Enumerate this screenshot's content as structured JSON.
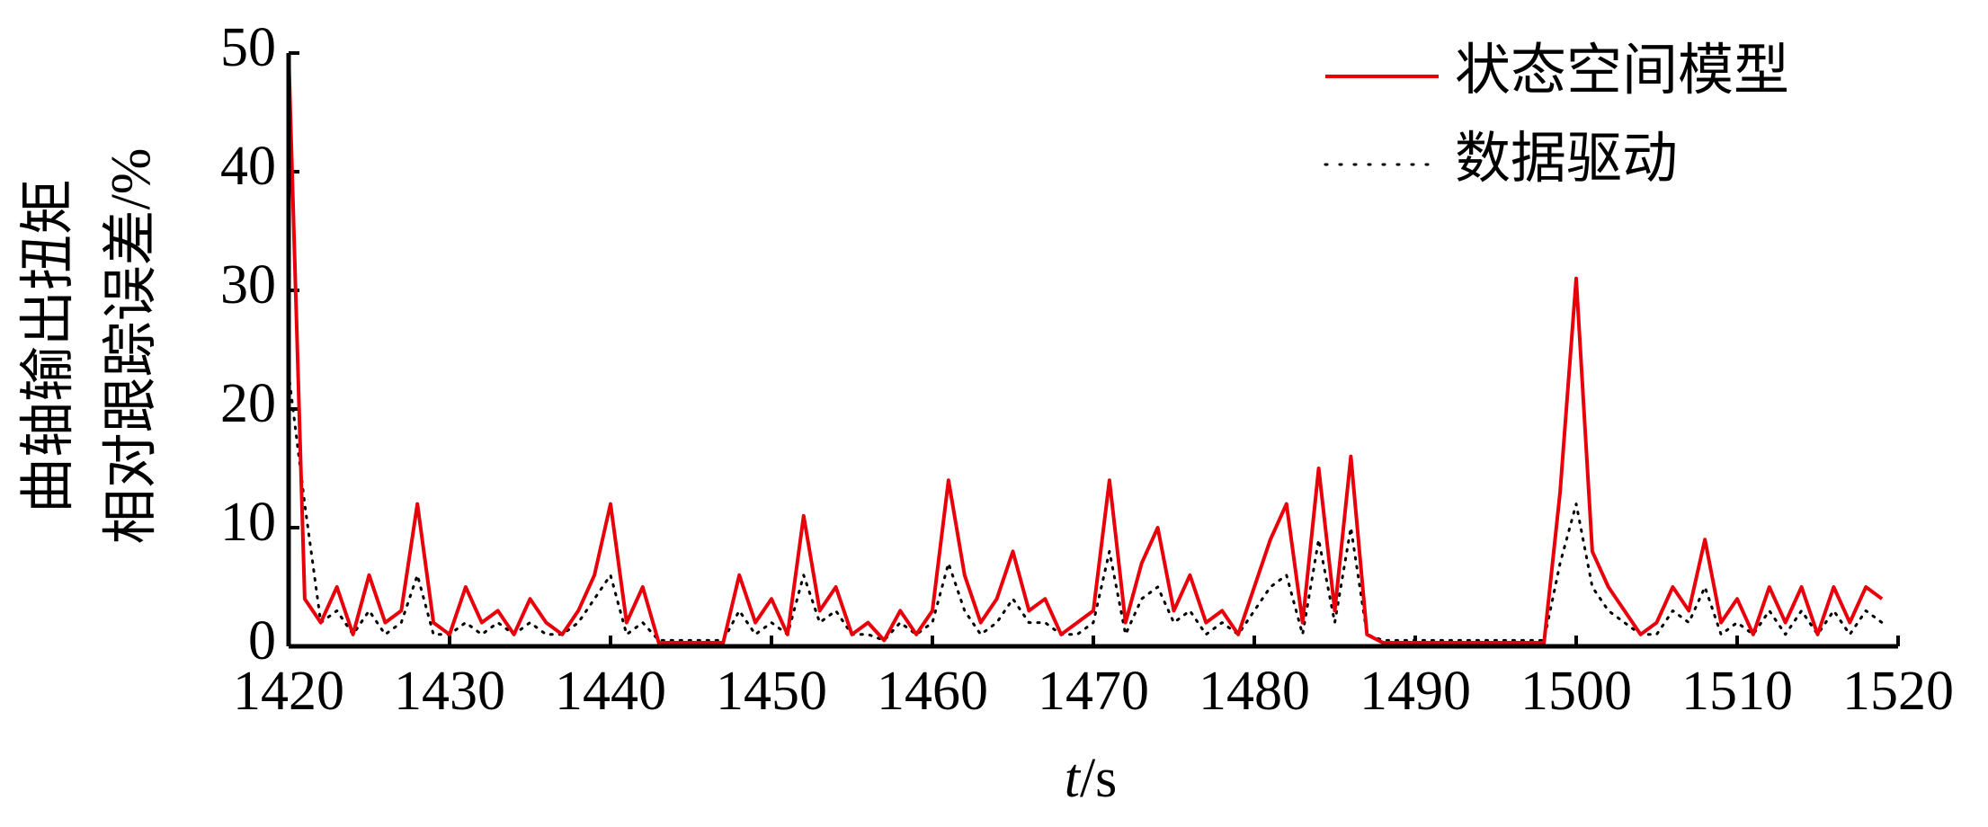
{
  "chart_data": {
    "type": "line",
    "ylabel": [
      "曲轴输出扭矩",
      "相对跟踪误差/%"
    ],
    "xlabel": "t/s",
    "x": [
      1420,
      1421,
      1422,
      1423,
      1424,
      1425,
      1426,
      1427,
      1428,
      1429,
      1430,
      1431,
      1432,
      1433,
      1434,
      1435,
      1436,
      1437,
      1438,
      1439,
      1440,
      1441,
      1442,
      1443,
      1444,
      1445,
      1446,
      1447,
      1448,
      1449,
      1450,
      1451,
      1452,
      1453,
      1454,
      1455,
      1456,
      1457,
      1458,
      1459,
      1460,
      1461,
      1462,
      1463,
      1464,
      1465,
      1466,
      1467,
      1468,
      1469,
      1470,
      1471,
      1472,
      1473,
      1474,
      1475,
      1476,
      1477,
      1478,
      1479,
      1480,
      1481,
      1482,
      1483,
      1484,
      1485,
      1486,
      1487,
      1488,
      1489,
      1490,
      1491,
      1492,
      1493,
      1494,
      1495,
      1496,
      1497,
      1498,
      1499,
      1500,
      1501,
      1502,
      1503,
      1504,
      1505,
      1506,
      1507,
      1508,
      1509,
      1510,
      1511,
      1512,
      1513,
      1514,
      1515,
      1516,
      1517,
      1518,
      1519
    ],
    "series": [
      {
        "name": "状态空间模型",
        "color": "#e8000b",
        "style": "solid",
        "values": [
          50,
          4,
          2,
          5,
          1,
          6,
          2,
          3,
          12,
          2,
          1,
          5,
          2,
          3,
          1,
          4,
          2,
          1,
          3,
          6,
          12,
          2,
          5,
          0.3,
          0.3,
          0.3,
          0.3,
          0.3,
          6,
          2,
          4,
          1,
          11,
          3,
          5,
          1,
          2,
          0.5,
          3,
          1,
          3,
          14,
          6,
          2,
          4,
          8,
          3,
          4,
          1,
          2,
          3,
          14,
          2,
          7,
          10,
          3,
          6,
          2,
          3,
          1,
          5,
          9,
          12,
          2,
          15,
          3,
          16,
          1,
          0.3,
          0.3,
          0.3,
          0.3,
          0.3,
          0.3,
          0.3,
          0.3,
          0.3,
          0.3,
          0.3,
          13,
          31,
          8,
          5,
          3,
          1,
          2,
          5,
          3,
          9,
          2,
          4,
          1,
          5,
          2,
          5,
          1,
          5,
          2,
          5,
          4
        ]
      },
      {
        "name": "数据驱动",
        "color": "#000000",
        "style": "dotted",
        "values": [
          23,
          12,
          2,
          3,
          1,
          3,
          1,
          2,
          6,
          1,
          1,
          2,
          1,
          2,
          1,
          2,
          1,
          1,
          2,
          4,
          6,
          1,
          2,
          0.5,
          0.5,
          0.5,
          0.5,
          0.5,
          3,
          1,
          2,
          1,
          6,
          2,
          3,
          1,
          1,
          0.5,
          2,
          1,
          2,
          7,
          3,
          1,
          2,
          4,
          2,
          2,
          1,
          1,
          2,
          8,
          1,
          4,
          5,
          2,
          3,
          1,
          2,
          1,
          3,
          5,
          6,
          1,
          9,
          2,
          10,
          1,
          0.5,
          0.5,
          0.5,
          0.5,
          0.5,
          0.5,
          0.5,
          0.5,
          0.5,
          0.5,
          0.5,
          7,
          12,
          5,
          3,
          2,
          1,
          1,
          3,
          2,
          5,
          1,
          2,
          1,
          3,
          1,
          3,
          1,
          3,
          1,
          3,
          2
        ]
      }
    ],
    "xlim": [
      1420,
      1520
    ],
    "xticks": [
      1420,
      1430,
      1440,
      1450,
      1460,
      1470,
      1480,
      1490,
      1500,
      1510,
      1520
    ],
    "ylim": [
      0,
      50
    ],
    "yticks": [
      0,
      10,
      20,
      30,
      40,
      50
    ],
    "grid": false,
    "legend": "upper right"
  }
}
